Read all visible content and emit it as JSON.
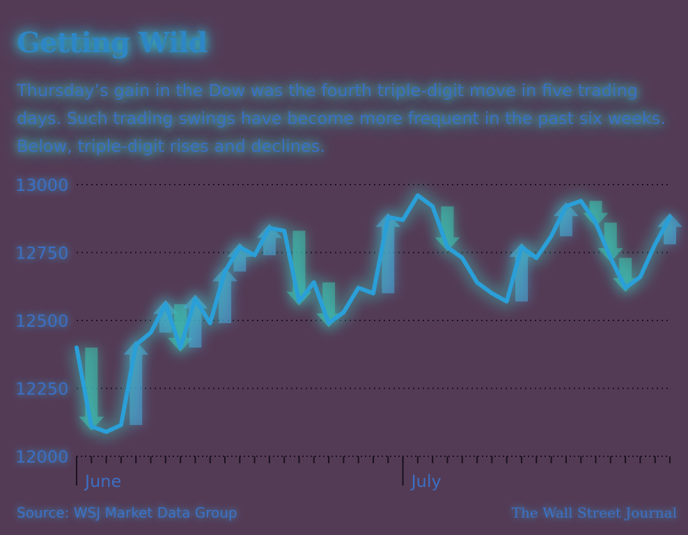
{
  "header": {
    "title": "Getting Wild",
    "subtitle": "Thursday’s gain in the Dow was the fourth triple-digit move in five trading days. Such trading swings have become more frequent in the past six weeks. Below, triple-digit rises and declines."
  },
  "footer": {
    "source": "Source: WSJ Market Data Group",
    "credit": "The Wall Street Journal"
  },
  "colors": {
    "background": "#543b55",
    "line": "#2a9fd8",
    "rise_arrow": "#4aa3d6",
    "decline_arrow": "#3fb8a8",
    "text": "#3b6fc4"
  },
  "chart_data": {
    "type": "line",
    "title": "Getting Wild",
    "ylim": [
      12000,
      13000
    ],
    "yticks": [
      12000,
      12250,
      12500,
      12750,
      13000
    ],
    "ytick_labels": [
      "12000",
      "12250",
      "12500",
      "12750",
      "13000"
    ],
    "grid": true,
    "x_labels": [
      {
        "label": "June",
        "index": 0
      },
      {
        "label": "July",
        "index": 22
      }
    ],
    "series": [
      {
        "values": [
          12400,
          12110,
          12090,
          12115,
          12410,
          12455,
          12560,
          12400,
          12580,
          12490,
          12680,
          12770,
          12740,
          12840,
          12830,
          12570,
          12640,
          12490,
          12530,
          12620,
          12600,
          12880,
          12870,
          12960,
          12920,
          12770,
          12730,
          12640,
          12600,
          12570,
          12770,
          12730,
          12810,
          12920,
          12940,
          12860,
          12730,
          12620,
          12660,
          12780,
          12880
        ]
      }
    ],
    "moves": [
      {
        "index": 1,
        "dir": "down"
      },
      {
        "index": 4,
        "dir": "up"
      },
      {
        "index": 6,
        "dir": "up"
      },
      {
        "index": 7,
        "dir": "down"
      },
      {
        "index": 8,
        "dir": "up"
      },
      {
        "index": 10,
        "dir": "up"
      },
      {
        "index": 11,
        "dir": "up"
      },
      {
        "index": 13,
        "dir": "up"
      },
      {
        "index": 15,
        "dir": "down"
      },
      {
        "index": 17,
        "dir": "down"
      },
      {
        "index": 21,
        "dir": "up"
      },
      {
        "index": 25,
        "dir": "down"
      },
      {
        "index": 30,
        "dir": "up"
      },
      {
        "index": 33,
        "dir": "up"
      },
      {
        "index": 35,
        "dir": "down"
      },
      {
        "index": 36,
        "dir": "down"
      },
      {
        "index": 37,
        "dir": "down"
      },
      {
        "index": 40,
        "dir": "up"
      }
    ]
  }
}
